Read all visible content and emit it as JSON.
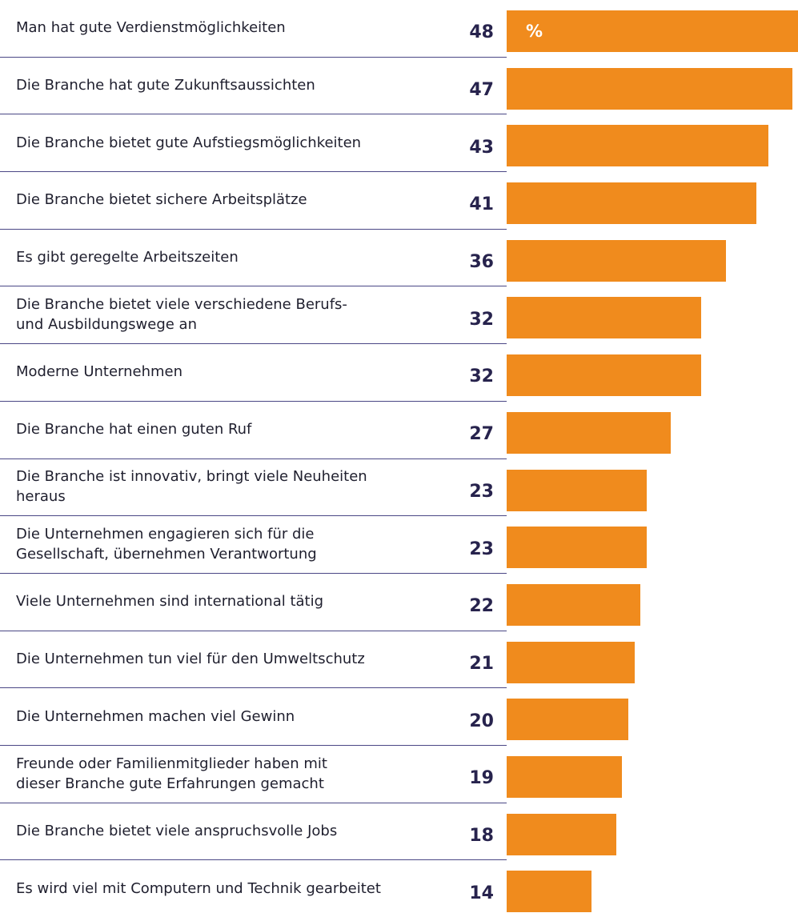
{
  "chart_data": {
    "type": "bar",
    "orientation": "horizontal",
    "unit": "%",
    "color": "#f08b1d",
    "categories": [
      "Man hat gute Verdienstmöglichkeiten",
      "Die Branche hat gute Zukunftsaussichten",
      "Die Branche bietet gute Aufstiegsmöglichkeiten",
      "Die Branche bietet sichere Arbeitsplätze",
      "Es gibt geregelte Arbeitszeiten",
      "Die Branche bietet viele verschiedene Berufs-\nund Ausbildungswege an",
      "Moderne Unternehmen",
      "Die Branche hat einen guten Ruf",
      "Die Branche ist innovativ, bringt viele Neuheiten\nheraus",
      "Die Unternehmen engagieren sich für die\nGesellschaft, übernehmen Verantwortung",
      "Viele Unternehmen sind international tätig",
      "Die Unternehmen tun viel für den Umweltschutz",
      "Die Unternehmen machen viel Gewinn",
      "Freunde oder Familienmitglieder haben mit\ndieser Branche gute Erfahrungen gemacht",
      "Die Branche bietet viele anspruchsvolle Jobs",
      "Es wird viel mit Computern und Technik gearbeitet"
    ],
    "values": [
      48,
      47,
      43,
      41,
      36,
      32,
      32,
      27,
      23,
      23,
      22,
      21,
      20,
      19,
      18,
      14
    ]
  }
}
